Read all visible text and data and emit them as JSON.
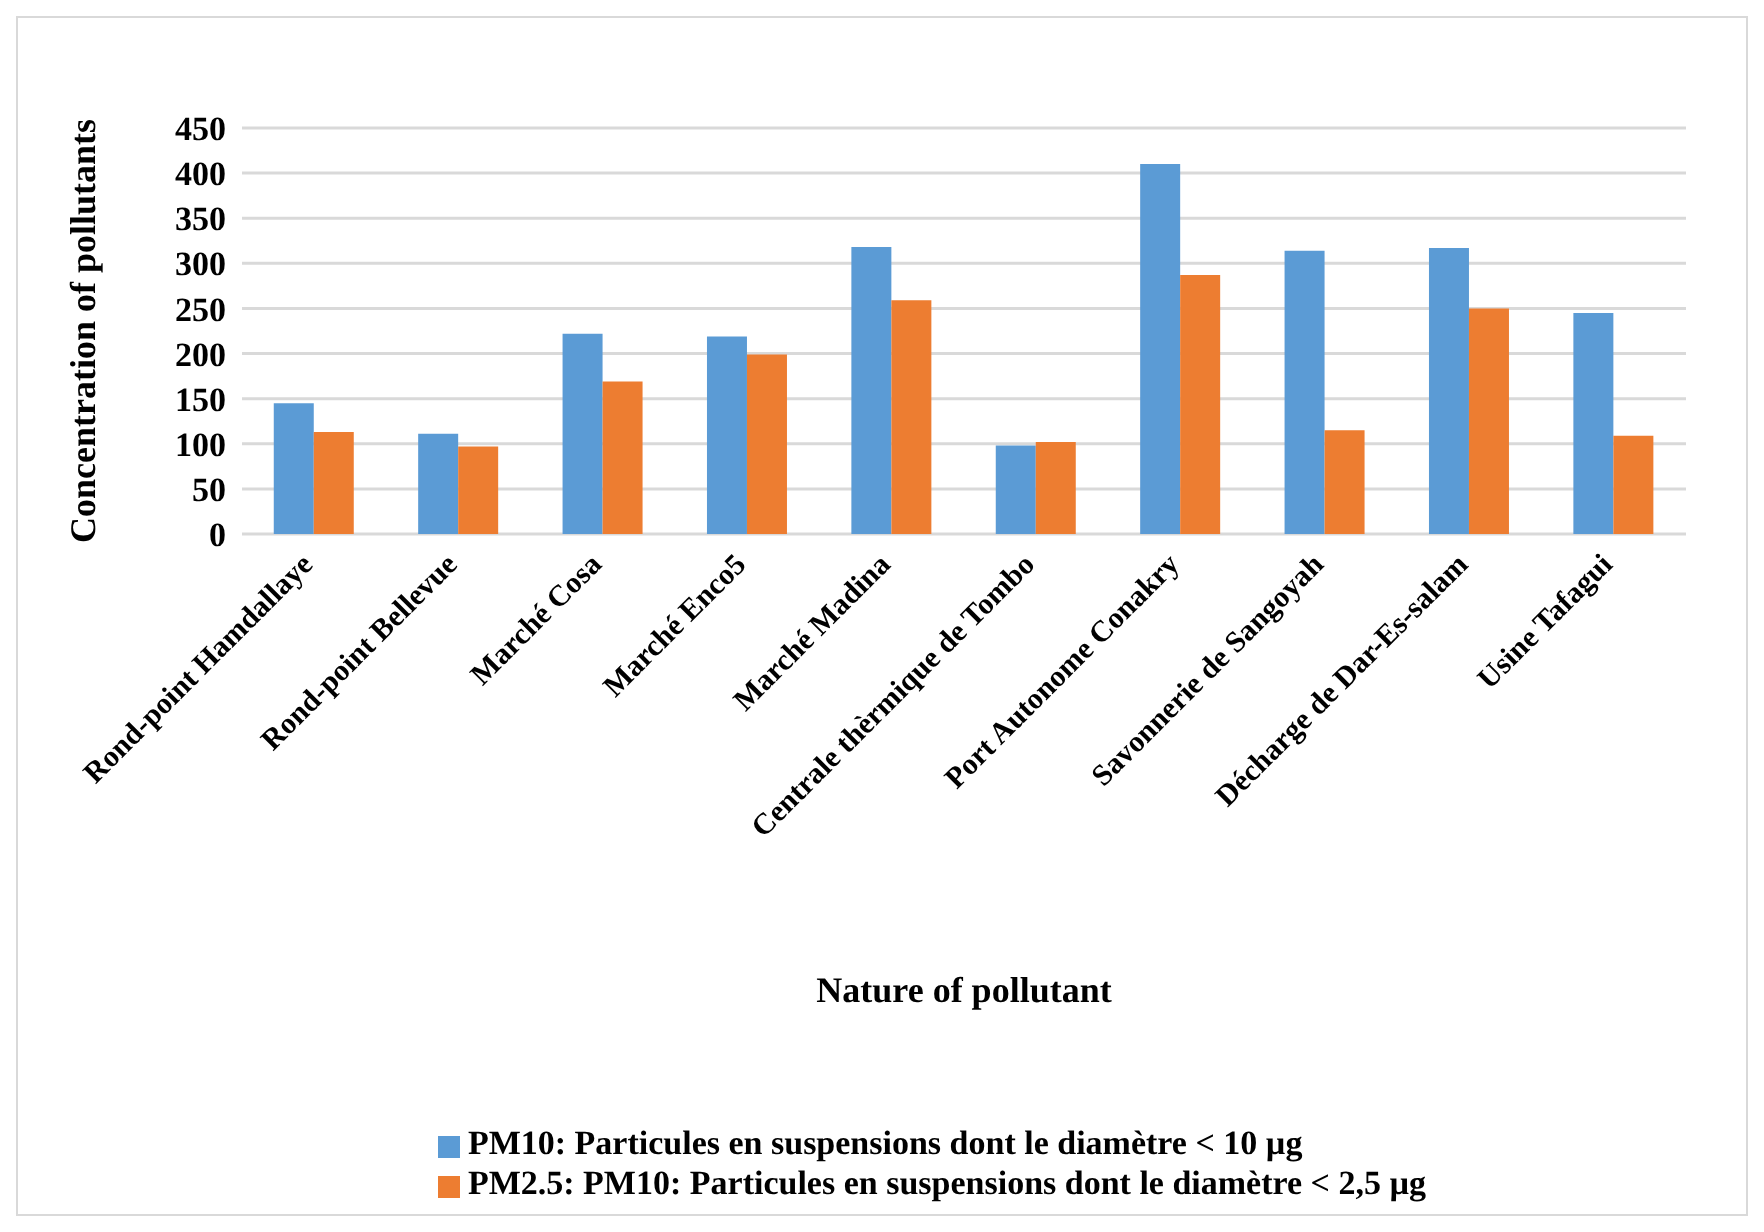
{
  "chart_data": {
    "type": "bar",
    "xlabel": "Nature of pollutant",
    "ylabel": "Concentration of pollutants",
    "categories": [
      "Rond-point Hamdallaye",
      "Rond-point Bellevue",
      "Marché Cosa",
      "Marché Enco5",
      "Marché Madina",
      "Centrale thèrmique de Tombo",
      "Port Autonome Conakry",
      "Savonnerie de Sangoyah",
      "Décharge de Dar-Es-salam",
      "Usine Tafagui"
    ],
    "series": [
      {
        "name": "PM10: Particules en suspensions dont le diamètre < 10 µg",
        "color": "#5b9bd5",
        "values": [
          145,
          111,
          222,
          219,
          318,
          98,
          410,
          314,
          317,
          245
        ]
      },
      {
        "name": "PM2.5: PM10: Particules en suspensions dont le diamètre < 2,5 µg",
        "color": "#ed7d31",
        "values": [
          113,
          97,
          169,
          199,
          259,
          102,
          287,
          115,
          250,
          109
        ]
      }
    ],
    "ylim": [
      0,
      450
    ],
    "yticks": [
      0,
      50,
      100,
      150,
      200,
      250,
      300,
      350,
      400,
      450
    ],
    "grid": "y",
    "legend": "bottom"
  }
}
